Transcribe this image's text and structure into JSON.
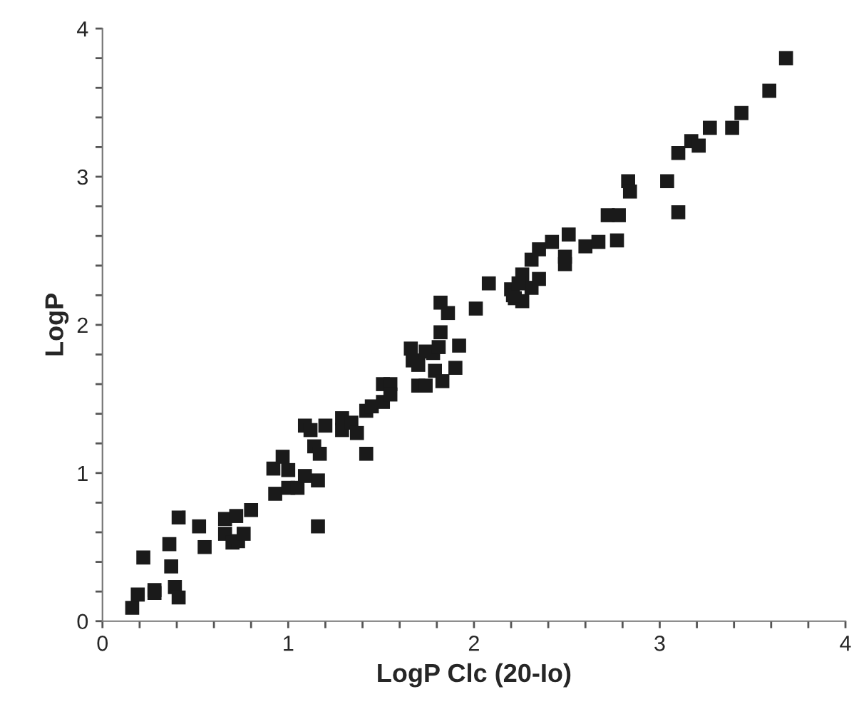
{
  "chart_data": {
    "type": "scatter",
    "xlabel": "LogP Clc (20-Io)",
    "ylabel": "LogP",
    "marker": "square",
    "grid": false,
    "legend": false,
    "series": [
      {
        "color": "#1a1a1a",
        "x": [
          0.16,
          0.19,
          0.22,
          0.28,
          0.28,
          0.36,
          0.37,
          0.41,
          0.39,
          0.41,
          0.52,
          0.55,
          0.66,
          0.66,
          0.72,
          0.7,
          0.73,
          0.76,
          0.8,
          0.92,
          0.93,
          0.97,
          1.0,
          1.0,
          1.05,
          1.09,
          1.16,
          1.16,
          1.09,
          1.12,
          1.14,
          1.17,
          1.2,
          1.29,
          1.29,
          1.34,
          1.37,
          1.42,
          1.42,
          1.45,
          1.51,
          1.51,
          1.55,
          1.55,
          1.66,
          1.67,
          1.7,
          1.7,
          1.74,
          1.74,
          1.78,
          1.81,
          1.82,
          1.82,
          1.86,
          1.79,
          1.83,
          1.9,
          1.92,
          2.01,
          2.08,
          2.2,
          2.22,
          2.26,
          2.26,
          2.31,
          2.21,
          2.24,
          2.35,
          2.31,
          2.35,
          2.42,
          2.51,
          2.49,
          2.49,
          2.6,
          2.67,
          2.77,
          2.72,
          2.78,
          2.83,
          2.84,
          3.04,
          3.1,
          3.1,
          3.17,
          3.21,
          3.27,
          3.39,
          3.44,
          3.59,
          3.68
        ],
        "values": [
          0.09,
          0.18,
          0.43,
          0.19,
          0.21,
          0.52,
          0.37,
          0.7,
          0.23,
          0.16,
          0.64,
          0.5,
          0.69,
          0.59,
          0.71,
          0.53,
          0.54,
          0.59,
          0.75,
          1.03,
          0.86,
          1.11,
          1.02,
          0.9,
          0.9,
          0.98,
          0.95,
          0.64,
          1.32,
          1.29,
          1.18,
          1.13,
          1.32,
          1.37,
          1.29,
          1.34,
          1.27,
          1.42,
          1.13,
          1.45,
          1.48,
          1.6,
          1.6,
          1.53,
          1.84,
          1.76,
          1.73,
          1.59,
          1.59,
          1.82,
          1.81,
          1.85,
          1.95,
          2.15,
          2.08,
          1.69,
          1.62,
          1.71,
          1.86,
          2.11,
          2.28,
          2.24,
          2.18,
          2.16,
          2.34,
          2.25,
          2.2,
          2.28,
          2.31,
          2.44,
          2.51,
          2.56,
          2.61,
          2.46,
          2.41,
          2.53,
          2.56,
          2.57,
          2.74,
          2.74,
          2.97,
          2.9,
          2.97,
          2.76,
          3.16,
          3.24,
          3.21,
          3.33,
          3.33,
          3.43,
          3.58,
          3.8
        ]
      }
    ],
    "xlim": [
      0,
      4
    ],
    "ylim": [
      0,
      4
    ],
    "xticks": [
      0,
      {
        "value": 0.2,
        "label": null
      },
      {
        "value": 0.4,
        "label": null
      },
      {
        "value": 0.6,
        "label": null
      },
      {
        "value": 0.8,
        "label": null
      },
      1,
      {
        "value": 1.2,
        "label": null
      },
      {
        "value": 1.4,
        "label": null
      },
      {
        "value": 1.6,
        "label": null
      },
      {
        "value": 1.8,
        "label": null
      },
      2,
      {
        "value": 2.2,
        "label": null
      },
      {
        "value": 2.4,
        "label": null
      },
      {
        "value": 2.6,
        "label": null
      },
      {
        "value": 2.8,
        "label": null
      },
      3,
      {
        "value": 3.2,
        "label": null
      },
      {
        "value": 3.4,
        "label": null
      },
      {
        "value": 3.6,
        "label": null
      },
      {
        "value": 3.8,
        "label": null
      },
      4
    ],
    "yticks": [
      0,
      {
        "value": 0.2,
        "label": null
      },
      {
        "value": 0.4,
        "label": null
      },
      {
        "value": 0.6,
        "label": null
      },
      {
        "value": 0.8,
        "label": null
      },
      1,
      {
        "value": 1.2,
        "label": null
      },
      {
        "value": 1.4,
        "label": null
      },
      {
        "value": 1.6,
        "label": null
      },
      {
        "value": 1.8,
        "label": null
      },
      2,
      {
        "value": 2.2,
        "label": null
      },
      {
        "value": 2.4,
        "label": null
      },
      {
        "value": 2.6,
        "label": null
      },
      {
        "value": 2.8,
        "label": null
      },
      3,
      {
        "value": 3.2,
        "label": null
      },
      {
        "value": 3.4,
        "label": null
      },
      {
        "value": 3.6,
        "label": null
      },
      {
        "value": 3.8,
        "label": null
      },
      4
    ]
  }
}
